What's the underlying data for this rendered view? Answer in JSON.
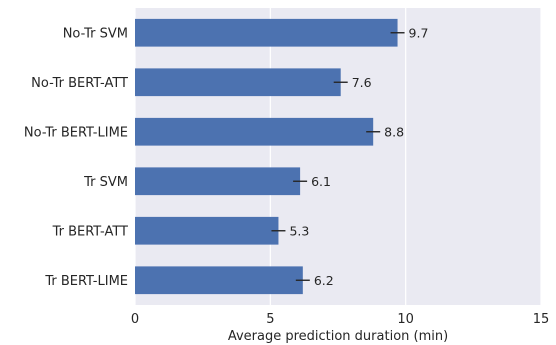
{
  "chart_data": {
    "type": "bar",
    "orientation": "horizontal",
    "categories": [
      "No-Tr SVM",
      "No-Tr BERT-ATT",
      "No-Tr BERT-LIME",
      "Tr SVM",
      "Tr BERT-ATT",
      "Tr BERT-LIME"
    ],
    "values": [
      9.7,
      7.6,
      8.8,
      6.1,
      5.3,
      6.2
    ],
    "value_labels": [
      "9.7",
      "7.6",
      "8.8",
      "6.1",
      "5.3",
      "6.2"
    ],
    "error_bars": true,
    "xlabel": "Average prediction duration (min)",
    "ylabel": "",
    "title": "",
    "xlim": [
      0,
      15
    ],
    "xticks": [
      0,
      5,
      10,
      15
    ],
    "grid": "vertical",
    "colors": {
      "bar": "#4c72b0",
      "plot_bg": "#eaeaf2",
      "grid": "#ffffff",
      "text": "#262626",
      "error": "#262626"
    }
  }
}
